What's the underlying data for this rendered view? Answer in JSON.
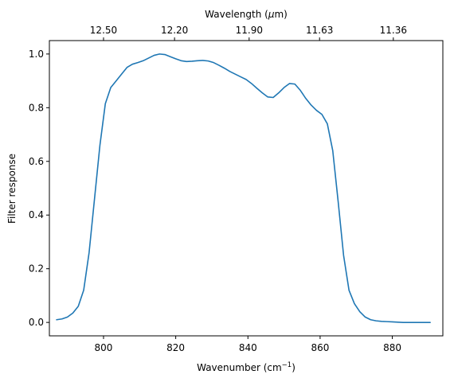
{
  "chart_data": {
    "type": "line",
    "xlabel_main": "Wavenumber (cm",
    "xlabel_sup": "−1",
    "xlabel_end": ")",
    "ylabel": "Filter response",
    "top_xlabel_main": "Wavelength (",
    "top_xlabel_mu": "μ",
    "top_xlabel_end": "m)",
    "xlim": [
      785,
      894
    ],
    "ylim": [
      -0.05,
      1.05
    ],
    "x_ticks": [
      800,
      820,
      840,
      860,
      880
    ],
    "x_tick_labels": [
      "800",
      "820",
      "840",
      "860",
      "880"
    ],
    "y_ticks": [
      0.0,
      0.2,
      0.4,
      0.6,
      0.8,
      1.0
    ],
    "y_tick_labels": [
      "0.0",
      "0.2",
      "0.4",
      "0.6",
      "0.8",
      "1.0"
    ],
    "top_x_ticks": [
      12.5,
      12.2,
      11.9,
      11.63,
      11.36
    ],
    "top_x_tick_labels": [
      "12.50",
      "12.20",
      "11.90",
      "11.63",
      "11.36"
    ],
    "grid": false,
    "line_color": "#1f77b4",
    "series": [
      {
        "x": [
          787.0,
          788.5,
          790.0,
          791.5,
          793.0,
          794.5,
          796.0,
          797.5,
          799.0,
          800.5,
          802.0,
          803.5,
          805.0,
          806.5,
          808.0,
          809.5,
          811.0,
          812.5,
          814.0,
          815.5,
          817.0,
          818.5,
          820.0,
          821.5,
          823.0,
          824.5,
          826.0,
          827.5,
          829.0,
          830.5,
          832.0,
          833.5,
          835.0,
          836.5,
          838.0,
          839.5,
          841.0,
          842.5,
          844.0,
          845.5,
          847.0,
          848.5,
          850.0,
          851.5,
          853.0,
          854.5,
          856.0,
          857.5,
          859.0,
          860.5,
          862.0,
          863.5,
          865.0,
          866.5,
          868.0,
          869.5,
          871.0,
          872.5,
          874.0,
          875.5,
          877.0,
          878.5,
          880.0,
          881.5,
          883.0,
          884.5,
          886.0,
          887.5,
          889.0,
          890.5
        ],
        "y": [
          0.01,
          0.013,
          0.02,
          0.035,
          0.06,
          0.12,
          0.26,
          0.46,
          0.66,
          0.815,
          0.875,
          0.9,
          0.925,
          0.95,
          0.962,
          0.968,
          0.975,
          0.985,
          0.995,
          1.0,
          0.998,
          0.99,
          0.982,
          0.975,
          0.972,
          0.973,
          0.975,
          0.976,
          0.974,
          0.968,
          0.958,
          0.947,
          0.935,
          0.925,
          0.915,
          0.905,
          0.89,
          0.872,
          0.855,
          0.84,
          0.838,
          0.855,
          0.875,
          0.89,
          0.888,
          0.865,
          0.835,
          0.81,
          0.79,
          0.775,
          0.74,
          0.64,
          0.45,
          0.25,
          0.12,
          0.07,
          0.04,
          0.02,
          0.01,
          0.006,
          0.004,
          0.003,
          0.002,
          0.001,
          0.0,
          0.0,
          0.0,
          0.0,
          0.0,
          0.0
        ]
      }
    ]
  }
}
